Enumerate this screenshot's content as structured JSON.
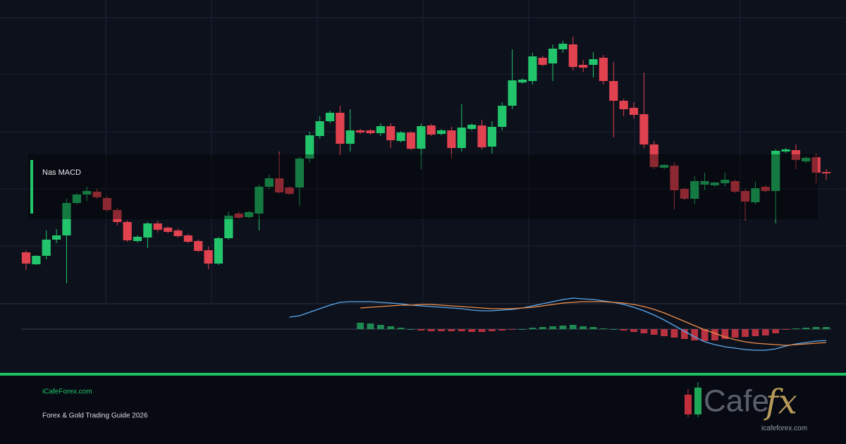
{
  "chart_data": {
    "type": "candlestick",
    "title": "Nas MACD",
    "up_color": "#22c56b",
    "down_color": "#e0424f",
    "ylim": [
      0,
      410
    ],
    "open": [
      72,
      55,
      67,
      90,
      96,
      142,
      154,
      158,
      149,
      132,
      115,
      88,
      93,
      113,
      107,
      103,
      96,
      88,
      75,
      56,
      92,
      127,
      122,
      127,
      165,
      177,
      164,
      164,
      205,
      237,
      258,
      270,
      226,
      245,
      245,
      241,
      251,
      230,
      242,
      219,
      252,
      240,
      245,
      220,
      247,
      252,
      222,
      250,
      280,
      313,
      315,
      348,
      340,
      360,
      367,
      338,
      338,
      348,
      315,
      287,
      277,
      268,
      225,
      192,
      195,
      162,
      148,
      168,
      167,
      170,
      173,
      159,
      143,
      165,
      159,
      215,
      217,
      201,
      207,
      186
    ],
    "high": [
      75,
      68,
      103,
      105,
      148,
      156,
      165,
      162,
      152,
      135,
      117,
      96,
      115,
      117,
      109,
      106,
      98,
      90,
      80,
      94,
      130,
      130,
      131,
      168,
      182,
      215,
      166,
      208,
      243,
      265,
      273,
      280,
      275,
      247,
      247,
      255,
      255,
      244,
      244,
      255,
      254,
      247,
      250,
      282,
      255,
      260,
      258,
      285,
      360,
      319,
      355,
      351,
      367,
      372,
      378,
      345,
      356,
      352,
      342,
      290,
      285,
      327,
      230,
      197,
      200,
      164,
      180,
      185,
      172,
      185,
      175,
      162,
      172,
      167,
      218,
      220,
      225,
      208,
      212,
      190
    ],
    "low": [
      47,
      54,
      62,
      85,
      28,
      140,
      145,
      148,
      130,
      110,
      87,
      86,
      78,
      100,
      99,
      93,
      85,
      72,
      48,
      54,
      90,
      119,
      120,
      103,
      162,
      155,
      153,
      138,
      200,
      233,
      255,
      210,
      215,
      240,
      239,
      237,
      220,
      228,
      217,
      190,
      237,
      238,
      205,
      215,
      245,
      218,
      212,
      245,
      275,
      311,
      310,
      336,
      315,
      355,
      330,
      328,
      320,
      310,
      235,
      265,
      262,
      220,
      190,
      190,
      133,
      146,
      140,
      160,
      165,
      165,
      156,
      117,
      140,
      157,
      113,
      213,
      190,
      199,
      170,
      175
    ],
    "close": [
      56,
      67,
      90,
      96,
      142,
      154,
      159,
      150,
      132,
      115,
      89,
      94,
      113,
      104,
      101,
      95,
      87,
      74,
      56,
      92,
      124,
      121,
      129,
      165,
      177,
      157,
      155,
      205,
      238,
      258,
      270,
      226,
      245,
      242,
      241,
      251,
      231,
      242,
      219,
      251,
      239,
      245,
      220,
      249,
      253,
      221,
      250,
      280,
      316,
      317,
      350,
      338,
      361,
      368,
      335,
      334,
      346,
      315,
      287,
      275,
      267,
      225,
      193,
      196,
      160,
      148,
      173,
      173,
      171,
      175,
      158,
      144,
      163,
      159,
      216,
      218,
      203,
      206,
      185,
      184
    ],
    "indicator": {
      "type": "macd",
      "ylim": [
        -43,
        35
      ],
      "macd": {
        "color": "#5aaaf0",
        "values": [
          null,
          null,
          null,
          null,
          null,
          null,
          null,
          null,
          null,
          null,
          null,
          null,
          null,
          null,
          null,
          null,
          null,
          null,
          null,
          null,
          null,
          null,
          null,
          null,
          null,
          null,
          17,
          19,
          24,
          29,
          34,
          38,
          39,
          39,
          39,
          38,
          37,
          36,
          34,
          33,
          32,
          31,
          30,
          29,
          27,
          26,
          26,
          27,
          28,
          30,
          33,
          36,
          39,
          42,
          44,
          43,
          42,
          40,
          38,
          35,
          31,
          26,
          20,
          13,
          5,
          -3,
          -11,
          -18,
          -22,
          -25,
          -27,
          -29,
          -30,
          -30,
          -28,
          -24,
          -21,
          -19,
          -17,
          -16
        ]
      },
      "signal": {
        "color": "#f0904a",
        "values": [
          null,
          null,
          null,
          null,
          null,
          null,
          null,
          null,
          null,
          null,
          null,
          null,
          null,
          null,
          null,
          null,
          null,
          null,
          null,
          null,
          null,
          null,
          null,
          null,
          null,
          null,
          null,
          null,
          null,
          null,
          null,
          null,
          null,
          30,
          31,
          32,
          33,
          34,
          34,
          35,
          35,
          34,
          33,
          32,
          31,
          30,
          29,
          29,
          29,
          30,
          31,
          33,
          35,
          37,
          38,
          39,
          39,
          39,
          38,
          37,
          35,
          32,
          28,
          23,
          17,
          11,
          5,
          -1,
          -6,
          -11,
          -15,
          -18,
          -20,
          -21,
          -22,
          -23,
          -22,
          -21,
          -20,
          -19
        ]
      },
      "histogram": {
        "up_color": "#1e8a52",
        "down_color": "#b8323f",
        "values": [
          null,
          null,
          null,
          null,
          null,
          null,
          null,
          null,
          null,
          null,
          null,
          null,
          null,
          null,
          null,
          null,
          null,
          null,
          null,
          null,
          null,
          null,
          null,
          null,
          null,
          null,
          null,
          null,
          null,
          null,
          null,
          null,
          null,
          9,
          8,
          6,
          4,
          2,
          0,
          -2,
          -3,
          -3,
          -3,
          -3,
          -4,
          -4,
          -3,
          -2,
          -1,
          0,
          2,
          3,
          4,
          5,
          6,
          4,
          3,
          1,
          0,
          -2,
          -4,
          -6,
          -8,
          -10,
          -12,
          -14,
          -16,
          -17,
          -16,
          -14,
          -12,
          -11,
          -10,
          -9,
          -6,
          -1,
          1,
          2,
          3,
          3
        ]
      }
    }
  },
  "footer": {
    "site": "iCafeForex.com",
    "subtitle": "Forex & Gold Trading Guide 2026",
    "logo": {
      "word": "Cafe",
      "accent": "fx",
      "url": "icafeforex.com"
    }
  }
}
